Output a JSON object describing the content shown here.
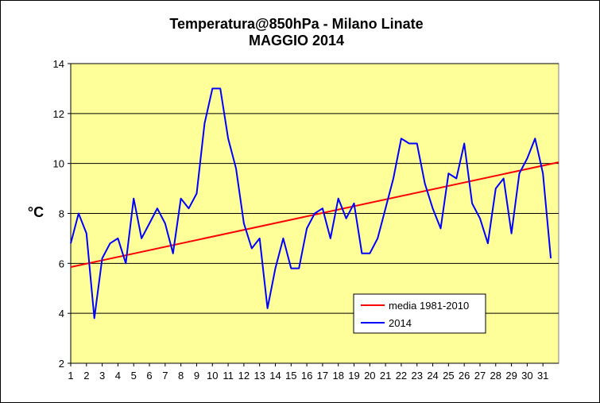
{
  "chart_data": {
    "type": "line",
    "title": "Temperatura@850hPa - Milano Linate",
    "subtitle": "MAGGIO 2014",
    "ylabel": "°C",
    "xlabel": "",
    "ylim": [
      2,
      14
    ],
    "yticks": [
      2,
      4,
      6,
      8,
      10,
      12,
      14
    ],
    "xlim": [
      1,
      32
    ],
    "xticks": [
      "1",
      "2",
      "3",
      "4",
      "5",
      "6",
      "7",
      "8",
      "9",
      "10",
      "11",
      "12",
      "13",
      "14",
      "15",
      "16",
      "17",
      "18",
      "19",
      "20",
      "21",
      "22",
      "23",
      "24",
      "25",
      "26",
      "27",
      "28",
      "29",
      "30",
      "31"
    ],
    "grid": "horizontal",
    "plot_background": "#FFFF99",
    "legend": "bottom-right",
    "series": [
      {
        "name": "media 1981-2010",
        "color": "#FF0000",
        "x": [
          1,
          32
        ],
        "values": [
          5.85,
          10.05
        ]
      },
      {
        "name": "2014",
        "color": "#0000FF",
        "x": [
          1,
          1.5,
          2,
          2.5,
          3,
          3.5,
          4,
          4.5,
          5,
          5.5,
          6,
          6.5,
          7,
          7.5,
          8,
          8.5,
          9,
          9.5,
          10,
          10.5,
          11,
          11.5,
          12,
          12.5,
          13,
          13.5,
          14,
          14.5,
          15,
          15.5,
          16,
          16.5,
          17,
          17.5,
          18,
          18.5,
          19,
          19.5,
          20,
          20.5,
          21,
          21.5,
          22,
          22.5,
          23,
          23.5,
          24,
          24.5,
          25,
          25.5,
          26,
          26.5,
          27,
          27.5,
          28,
          28.5,
          29,
          29.5,
          30,
          30.5,
          31,
          31.5
        ],
        "values": [
          6.8,
          8.0,
          7.2,
          3.8,
          6.2,
          6.8,
          7.0,
          6.0,
          8.6,
          7.0,
          7.6,
          8.2,
          7.6,
          6.4,
          8.6,
          8.2,
          8.8,
          11.6,
          13.0,
          13.0,
          11.0,
          9.8,
          7.6,
          6.6,
          7.0,
          4.2,
          5.8,
          7.0,
          5.8,
          5.8,
          7.4,
          8.0,
          8.2,
          7.0,
          8.6,
          7.8,
          8.4,
          6.4,
          6.4,
          7.0,
          8.2,
          9.4,
          11.0,
          10.8,
          10.8,
          9.2,
          8.2,
          7.4,
          9.6,
          9.4,
          10.8,
          8.4,
          7.8,
          6.8,
          9.0,
          9.4,
          7.2,
          9.6,
          10.2,
          11.0,
          9.6,
          6.2
        ]
      }
    ]
  }
}
